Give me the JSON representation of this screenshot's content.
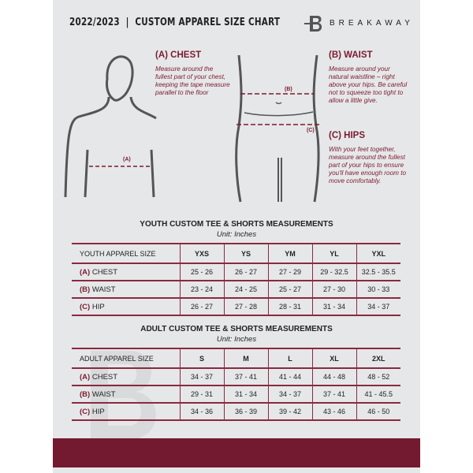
{
  "header": {
    "title": "2022/2023  |  CUSTOM APPAREL SIZE CHART",
    "brand": "BREAKAWAY",
    "logo_letter": "B"
  },
  "guide": {
    "chest": {
      "title": "(A) CHEST",
      "text": "Measure around the fullest part of your chest, keeping the tape measure parallel to the floor",
      "marker": "(A)"
    },
    "waist": {
      "title": "(B) WAIST",
      "text": "Measure around your natural waistline – right above your hips. Be careful not to squeeze too tight to allow a little give.",
      "marker": "(B)"
    },
    "hips": {
      "title": "(C) HIPS",
      "text": "With your feet together, measure around the fullest part of your hips to ensure you'll have enough room to move comfortably.",
      "marker": "(C)"
    }
  },
  "colors": {
    "accent": "#741a30",
    "background": "#e6e7e9"
  },
  "youth": {
    "title": "YOUTH CUSTOM TEE & SHORTS MEASUREMENTS",
    "unit": "Unit: Inches",
    "header": "YOUTH APPAREL SIZE",
    "sizes": [
      "YXS",
      "YS",
      "YM",
      "YL",
      "YXL"
    ],
    "rows": [
      {
        "letter": "(A)",
        "name": "CHEST",
        "values": [
          "25 - 26",
          "26 - 27",
          "27 - 29",
          "29 - 32.5",
          "32.5 - 35.5"
        ]
      },
      {
        "letter": "(B)",
        "name": "WAIST",
        "values": [
          "23 - 24",
          "24 - 25",
          "25 - 27",
          "27 - 30",
          "30 - 33"
        ]
      },
      {
        "letter": "(C)",
        "name": "HIP",
        "values": [
          "26 - 27",
          "27 - 28",
          "28 - 31",
          "31 - 34",
          "34 - 37"
        ]
      }
    ]
  },
  "adult": {
    "title": "ADULT CUSTOM TEE & SHORTS MEASUREMENTS",
    "unit": "Unit: Inches",
    "header": "ADULT APPAREL SIZE",
    "sizes": [
      "S",
      "M",
      "L",
      "XL",
      "2XL"
    ],
    "rows": [
      {
        "letter": "(A)",
        "name": "CHEST",
        "values": [
          "34 - 37",
          "37 - 41",
          "41 - 44",
          "44 - 48",
          "48 - 52"
        ]
      },
      {
        "letter": "(B)",
        "name": "WAIST",
        "values": [
          "29 - 31",
          "31 - 34",
          "34 - 37",
          "37 - 41",
          "41 - 45.5"
        ]
      },
      {
        "letter": "(C)",
        "name": "HIP",
        "values": [
          "34 - 36",
          "36 - 39",
          "39 - 42",
          "43 - 46",
          "46 - 50"
        ]
      }
    ]
  }
}
